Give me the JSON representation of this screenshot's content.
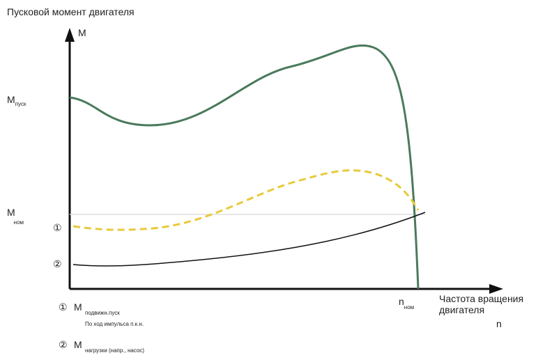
{
  "title": "Пусковой момент двигателя",
  "y_axis": {
    "label": "M",
    "start_label": {
      "main": "M",
      "sub": "пуск"
    },
    "nominal_label": {
      "main": "M",
      "sub": "ном"
    }
  },
  "x_axis": {
    "label_line1": "Частота вращения",
    "label_line2": "двигателя",
    "symbol": "n",
    "nominal_label": {
      "main": "n",
      "sub": "ном"
    }
  },
  "curve_markers": [
    "①",
    "②"
  ],
  "legend": [
    {
      "marker": "①",
      "main": "M",
      "sub": "подвижн.пуск",
      "note": "По ход импульса п.к.н."
    },
    {
      "marker": "②",
      "main": "M",
      "sub": "нагрузки (напр., насос)"
    }
  ]
}
